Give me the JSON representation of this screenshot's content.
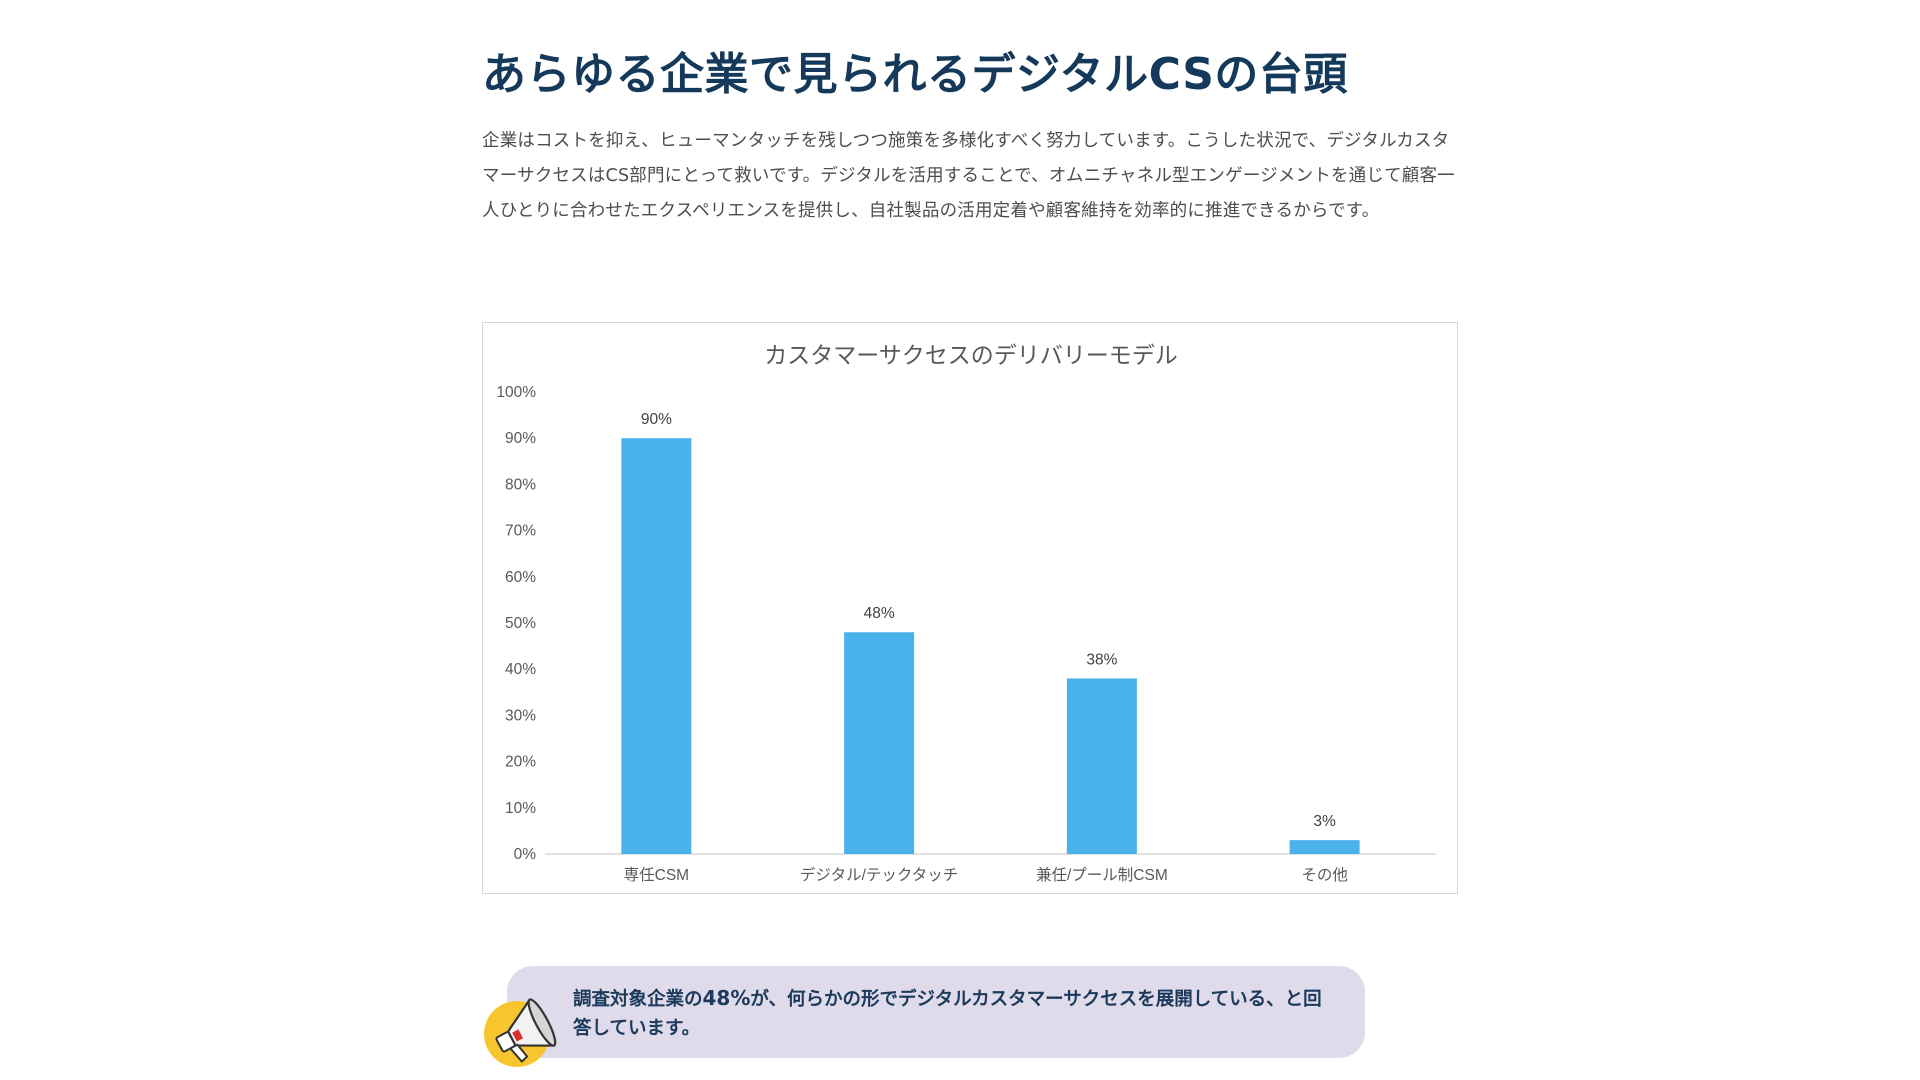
{
  "page": {
    "title": "あらゆる企業で見られるデジタルCSの台頭",
    "intro": "企業はコストを抑え、ヒューマンタッチを残しつつ施策を多様化すべく努力しています。こうした状況で、デジタルカスタマーサクセスはCS部門にとって救いです。デジタルを活用することで、オムニチャネル型エンゲージメントを通じて顧客一人ひとりに合わせたエクスペリエンスを提供し、自社製品の活用定着や顧客維持を効率的に推進できるからです。"
  },
  "chart_data": {
    "type": "bar",
    "title": "カスタマーサクセスのデリバリーモデル",
    "xlabel": "",
    "ylabel": "",
    "categories": [
      "専任CSM",
      "デジタル/テックタッチ",
      "兼任/プール制CSM",
      "その他"
    ],
    "values": [
      90,
      48,
      38,
      3
    ],
    "value_labels": [
      "90%",
      "48%",
      "38%",
      "3%"
    ],
    "ylim": [
      0,
      100
    ],
    "y_ticks": [
      0,
      10,
      20,
      30,
      40,
      50,
      60,
      70,
      80,
      90,
      100
    ],
    "y_tick_labels": [
      "0%",
      "10%",
      "20%",
      "30%",
      "40%",
      "50%",
      "60%",
      "70%",
      "80%",
      "90%",
      "100%"
    ],
    "grid": false,
    "legend": "none",
    "bar_color": "#4ab2ea"
  },
  "callout": {
    "text_before": "調査対象企業の",
    "highlight": "48%",
    "text_after": "が、何らかの形でデジタルカスタマーサクセスを展開している、と回答しています。",
    "icon": "megaphone-icon"
  },
  "colors": {
    "title": "#14395b",
    "callout_bg": "#e0dbea",
    "callout_text": "#1b3a5c",
    "megaphone_circle": "#f7c62f"
  }
}
